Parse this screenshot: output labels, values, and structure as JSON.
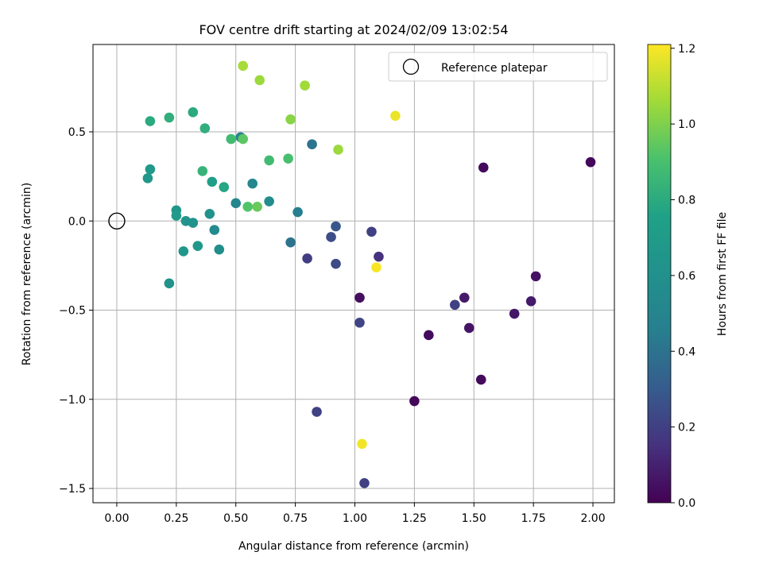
{
  "chart_data": {
    "type": "scatter",
    "title": "FOV centre drift starting at 2024/02/09 13:02:54",
    "xlabel": "Angular distance from reference (arcmin)",
    "ylabel": "Rotation from reference (arcmin)",
    "xlim": [
      -0.1,
      2.09
    ],
    "ylim": [
      -1.58,
      0.99
    ],
    "xticks": [
      0.0,
      0.25,
      0.5,
      0.75,
      1.0,
      1.25,
      1.5,
      1.75,
      2.0
    ],
    "xtick_labels": [
      "0.00",
      "0.25",
      "0.50",
      "0.75",
      "1.00",
      "1.25",
      "1.50",
      "1.75",
      "2.00"
    ],
    "yticks": [
      0.5,
      0.0,
      -0.5,
      -1.0,
      -1.5
    ],
    "ytick_labels": [
      "0.5",
      "0.0",
      "−0.5",
      "−1.0",
      "−1.5"
    ],
    "grid": true,
    "colormap": "viridis",
    "colorbar": {
      "label": "Hours from first FF file",
      "range": [
        0.0,
        1.21
      ],
      "ticks": [
        0.0,
        0.2,
        0.4,
        0.6,
        0.8,
        1.0,
        1.2
      ],
      "tick_labels": [
        "0.0",
        "0.2",
        "0.4",
        "0.6",
        "0.8",
        "1.0",
        "1.2"
      ]
    },
    "legend": {
      "placement": "top-right",
      "entries": [
        "Reference platepar"
      ]
    },
    "reference_point": {
      "name": "Reference platepar",
      "x": 0.0,
      "y": 0.0
    },
    "points": [
      {
        "x": 1.99,
        "y": 0.33,
        "c": 0.02
      },
      {
        "x": 1.54,
        "y": 0.3,
        "c": 0.03
      },
      {
        "x": 1.02,
        "y": -0.43,
        "c": 0.04
      },
      {
        "x": 1.31,
        "y": -0.64,
        "c": 0.03
      },
      {
        "x": 1.25,
        "y": -1.01,
        "c": 0.02
      },
      {
        "x": 1.53,
        "y": -0.89,
        "c": 0.03
      },
      {
        "x": 1.48,
        "y": -0.6,
        "c": 0.06
      },
      {
        "x": 1.46,
        "y": -0.43,
        "c": 0.08
      },
      {
        "x": 1.67,
        "y": -0.52,
        "c": 0.07
      },
      {
        "x": 1.74,
        "y": -0.45,
        "c": 0.08
      },
      {
        "x": 1.76,
        "y": -0.31,
        "c": 0.05
      },
      {
        "x": 1.42,
        "y": -0.47,
        "c": 0.2
      },
      {
        "x": 1.1,
        "y": -0.2,
        "c": 0.15
      },
      {
        "x": 1.07,
        "y": -0.06,
        "c": 0.2
      },
      {
        "x": 1.02,
        "y": -0.57,
        "c": 0.22
      },
      {
        "x": 1.04,
        "y": -1.47,
        "c": 0.2
      },
      {
        "x": 0.84,
        "y": -1.07,
        "c": 0.21
      },
      {
        "x": 0.92,
        "y": -0.24,
        "c": 0.24
      },
      {
        "x": 0.92,
        "y": -0.03,
        "c": 0.28
      },
      {
        "x": 0.9,
        "y": -0.09,
        "c": 0.25
      },
      {
        "x": 0.8,
        "y": -0.21,
        "c": 0.19
      },
      {
        "x": 0.73,
        "y": -0.12,
        "c": 0.4
      },
      {
        "x": 0.76,
        "y": 0.05,
        "c": 0.45
      },
      {
        "x": 0.82,
        "y": 0.43,
        "c": 0.4
      },
      {
        "x": 0.64,
        "y": 0.11,
        "c": 0.56
      },
      {
        "x": 0.57,
        "y": 0.21,
        "c": 0.52
      },
      {
        "x": 0.5,
        "y": 0.1,
        "c": 0.5
      },
      {
        "x": 0.52,
        "y": 0.47,
        "c": 0.49
      },
      {
        "x": 0.43,
        "y": -0.16,
        "c": 0.58
      },
      {
        "x": 0.41,
        "y": -0.05,
        "c": 0.55
      },
      {
        "x": 0.39,
        "y": 0.04,
        "c": 0.62
      },
      {
        "x": 0.32,
        "y": -0.01,
        "c": 0.62
      },
      {
        "x": 0.29,
        "y": 0.0,
        "c": 0.64
      },
      {
        "x": 0.34,
        "y": -0.14,
        "c": 0.67
      },
      {
        "x": 0.28,
        "y": -0.17,
        "c": 0.66
      },
      {
        "x": 0.25,
        "y": 0.06,
        "c": 0.66
      },
      {
        "x": 0.25,
        "y": 0.03,
        "c": 0.7
      },
      {
        "x": 0.22,
        "y": -0.35,
        "c": 0.62
      },
      {
        "x": 0.13,
        "y": 0.24,
        "c": 0.66
      },
      {
        "x": 0.14,
        "y": 0.29,
        "c": 0.68
      },
      {
        "x": 0.14,
        "y": 0.56,
        "c": 0.8
      },
      {
        "x": 0.22,
        "y": 0.58,
        "c": 0.82
      },
      {
        "x": 0.32,
        "y": 0.61,
        "c": 0.8
      },
      {
        "x": 0.37,
        "y": 0.52,
        "c": 0.82
      },
      {
        "x": 0.4,
        "y": 0.22,
        "c": 0.74
      },
      {
        "x": 0.45,
        "y": 0.19,
        "c": 0.78
      },
      {
        "x": 0.36,
        "y": 0.28,
        "c": 0.84
      },
      {
        "x": 0.48,
        "y": 0.46,
        "c": 0.88
      },
      {
        "x": 0.53,
        "y": 0.46,
        "c": 0.94
      },
      {
        "x": 0.55,
        "y": 0.08,
        "c": 0.92
      },
      {
        "x": 0.59,
        "y": 0.08,
        "c": 0.96
      },
      {
        "x": 0.64,
        "y": 0.34,
        "c": 0.88
      },
      {
        "x": 0.72,
        "y": 0.35,
        "c": 0.9
      },
      {
        "x": 0.53,
        "y": 0.87,
        "c": 1.07
      },
      {
        "x": 0.6,
        "y": 0.79,
        "c": 1.05
      },
      {
        "x": 0.79,
        "y": 0.76,
        "c": 1.06
      },
      {
        "x": 0.73,
        "y": 0.57,
        "c": 1.02
      },
      {
        "x": 0.93,
        "y": 0.4,
        "c": 1.05
      },
      {
        "x": 1.17,
        "y": 0.59,
        "c": 1.18
      },
      {
        "x": 1.09,
        "y": -0.26,
        "c": 1.2
      },
      {
        "x": 1.03,
        "y": -1.25,
        "c": 1.19
      }
    ]
  }
}
